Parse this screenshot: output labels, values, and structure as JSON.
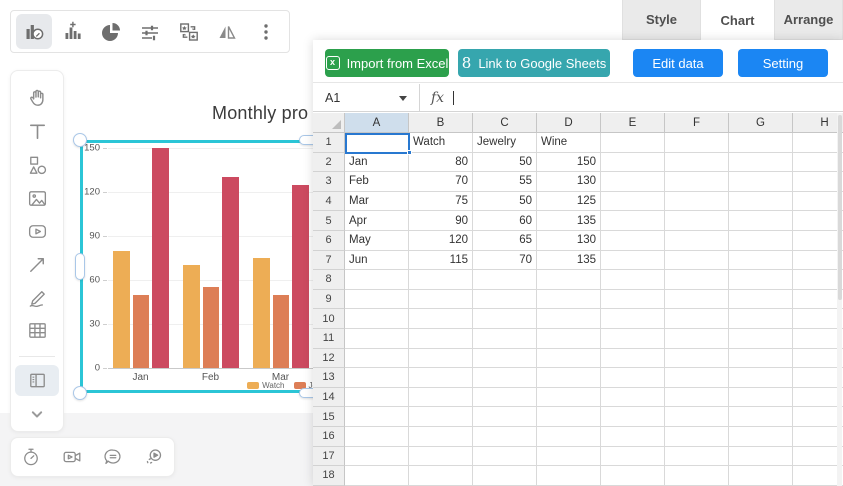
{
  "top_toolbar": {
    "icons": [
      {
        "name": "chart-edit-icon",
        "selected": true
      },
      {
        "name": "chart-add-icon",
        "selected": false
      },
      {
        "name": "pie-chart-icon",
        "selected": false
      },
      {
        "name": "sliders-icon",
        "selected": false
      },
      {
        "name": "replace-shape-icon",
        "selected": false
      },
      {
        "name": "flip-icon",
        "selected": false
      },
      {
        "name": "more-options-icon",
        "selected": false
      }
    ]
  },
  "right_tabs": [
    {
      "label": "Style",
      "active": false
    },
    {
      "label": "Chart",
      "active": true
    },
    {
      "label": "Arrange",
      "active": false
    }
  ],
  "left_sidebar": {
    "tools": [
      "hand",
      "text",
      "shapes",
      "image",
      "video",
      "arrow",
      "pen",
      "table"
    ],
    "selected_tool": "side-panel"
  },
  "bottom_toolbar": {
    "tools": [
      "timer",
      "video-camera",
      "comment",
      "presentation-play"
    ]
  },
  "chart_data": {
    "type": "bar",
    "title": "Monthly pro",
    "categories": [
      "Jan",
      "Feb",
      "Mar",
      "Apr",
      "May",
      "Jun"
    ],
    "series": [
      {
        "name": "Watch",
        "color": "#EDAD55",
        "values": [
          80,
          70,
          75,
          90,
          120,
          115
        ]
      },
      {
        "name": "Jewelry",
        "color": "#DD7E56",
        "values": [
          50,
          55,
          50,
          60,
          65,
          70
        ]
      },
      {
        "name": "Wine",
        "color": "#CC4A60",
        "values": [
          150,
          130,
          125,
          135,
          130,
          135
        ]
      }
    ],
    "ylim": [
      0,
      150
    ],
    "yticks": [
      0,
      30,
      60,
      90,
      120,
      150
    ],
    "grid": true,
    "legend_position": "bottom",
    "selection_color": "#2BC5D6"
  },
  "data_panel": {
    "buttons": [
      {
        "label": "Import from Excel",
        "bg": "#2CA04C",
        "icon": "excel-icon"
      },
      {
        "label": "Link to Google Sheets",
        "bg": "#36A6AE",
        "icon": "google-sheets-icon"
      },
      {
        "label": "Edit data",
        "bg": "#1B86F3",
        "icon": ""
      },
      {
        "label": "Setting",
        "bg": "#1B86F3",
        "icon": ""
      }
    ],
    "excel_glyph": "x",
    "google_glyph": "8",
    "name_box": "A1",
    "formula_label": "fx",
    "formula_value": "",
    "spreadsheet": {
      "columns": [
        "A",
        "B",
        "C",
        "D",
        "E",
        "F",
        "G",
        "H"
      ],
      "row_count": 18,
      "selected_cell": {
        "col": "A",
        "row": 1
      },
      "cells": [
        {
          "row": 1,
          "values": [
            "",
            "Watch",
            "Jewelry",
            "Wine"
          ]
        },
        {
          "row": 2,
          "values": [
            "Jan",
            "80",
            "50",
            "150"
          ]
        },
        {
          "row": 3,
          "values": [
            "Feb",
            "70",
            "55",
            "130"
          ]
        },
        {
          "row": 4,
          "values": [
            "Mar",
            "75",
            "50",
            "125"
          ]
        },
        {
          "row": 5,
          "values": [
            "Apr",
            "90",
            "60",
            "135"
          ]
        },
        {
          "row": 6,
          "values": [
            "May",
            "120",
            "65",
            "130"
          ]
        },
        {
          "row": 7,
          "values": [
            "Jun",
            "115",
            "70",
            "135"
          ]
        }
      ]
    }
  }
}
